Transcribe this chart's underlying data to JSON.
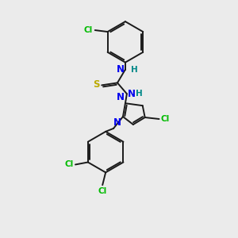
{
  "background_color": "#ebebeb",
  "bond_color": "#1a1a1a",
  "atom_colors": {
    "N": "#0000ee",
    "H": "#008888",
    "S": "#bbaa00",
    "Cl": "#00bb00",
    "C": "#1a1a1a"
  },
  "figsize": [
    3.0,
    3.0
  ],
  "dpi": 100
}
